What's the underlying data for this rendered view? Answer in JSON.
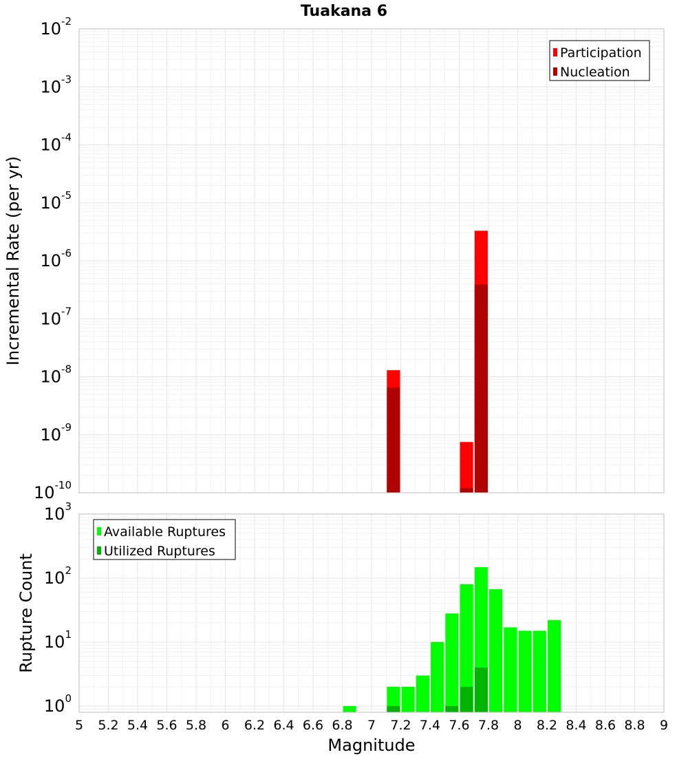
{
  "chart_data": [
    {
      "type": "bar",
      "title": "Tuakana 6",
      "ylabel": "Incremental Rate (per yr)",
      "xlabel": "",
      "xlim": [
        5,
        9
      ],
      "ylim": [
        1e-10,
        0.01
      ],
      "yscale": "log",
      "grid": true,
      "legend_position": "top-right",
      "bar_width": 0.09,
      "series": [
        {
          "name": "Participation",
          "color": "#ff0000",
          "points": [
            {
              "x": 7.15,
              "y": 1.3e-08
            },
            {
              "x": 7.65,
              "y": 7.5e-10
            },
            {
              "x": 7.75,
              "y": 3.3e-06
            }
          ]
        },
        {
          "name": "Nucleation",
          "color": "#b00000",
          "points": [
            {
              "x": 7.15,
              "y": 6.5e-09
            },
            {
              "x": 7.65,
              "y": 1.2e-10
            },
            {
              "x": 7.75,
              "y": 3.9e-07
            }
          ]
        }
      ],
      "y_ticks": [
        {
          "base": "10",
          "exp": "-2"
        },
        {
          "base": "10",
          "exp": "-3"
        },
        {
          "base": "10",
          "exp": "-4"
        },
        {
          "base": "10",
          "exp": "-5"
        },
        {
          "base": "10",
          "exp": "-6"
        },
        {
          "base": "10",
          "exp": "-7"
        },
        {
          "base": "10",
          "exp": "-8"
        },
        {
          "base": "10",
          "exp": "-9"
        },
        {
          "base": "10",
          "exp": "-10"
        }
      ]
    },
    {
      "type": "bar",
      "ylabel": "Rupture Count",
      "xlabel": "Magnitude",
      "xlim": [
        5,
        9
      ],
      "ylim": [
        0.8,
        1000
      ],
      "yscale": "log",
      "grid": true,
      "legend_position": "top-left",
      "bar_width": 0.09,
      "series": [
        {
          "name": "Available Ruptures",
          "color": "#00ff00",
          "points": [
            {
              "x": 6.85,
              "y": 1
            },
            {
              "x": 7.15,
              "y": 2
            },
            {
              "x": 7.25,
              "y": 2
            },
            {
              "x": 7.35,
              "y": 3
            },
            {
              "x": 7.45,
              "y": 10
            },
            {
              "x": 7.55,
              "y": 28
            },
            {
              "x": 7.65,
              "y": 80
            },
            {
              "x": 7.75,
              "y": 148
            },
            {
              "x": 7.85,
              "y": 67
            },
            {
              "x": 7.95,
              "y": 17
            },
            {
              "x": 8.05,
              "y": 15
            },
            {
              "x": 8.15,
              "y": 15
            },
            {
              "x": 8.25,
              "y": 22
            }
          ]
        },
        {
          "name": "Utilized Ruptures",
          "color": "#00b400",
          "points": [
            {
              "x": 7.15,
              "y": 1
            },
            {
              "x": 7.55,
              "y": 1
            },
            {
              "x": 7.65,
              "y": 2
            },
            {
              "x": 7.75,
              "y": 4
            }
          ]
        }
      ],
      "y_ticks": [
        {
          "base": "10",
          "exp": "3"
        },
        {
          "base": "10",
          "exp": "2"
        },
        {
          "base": "10",
          "exp": "1"
        },
        {
          "base": "10",
          "exp": "0"
        }
      ],
      "x_ticks": [
        "5",
        "5.2",
        "5.4",
        "5.6",
        "5.8",
        "6",
        "6.2",
        "6.4",
        "6.6",
        "6.8",
        "7",
        "7.2",
        "7.4",
        "7.6",
        "7.8",
        "8",
        "8.2",
        "8.4",
        "8.6",
        "8.8",
        "9"
      ]
    }
  ]
}
